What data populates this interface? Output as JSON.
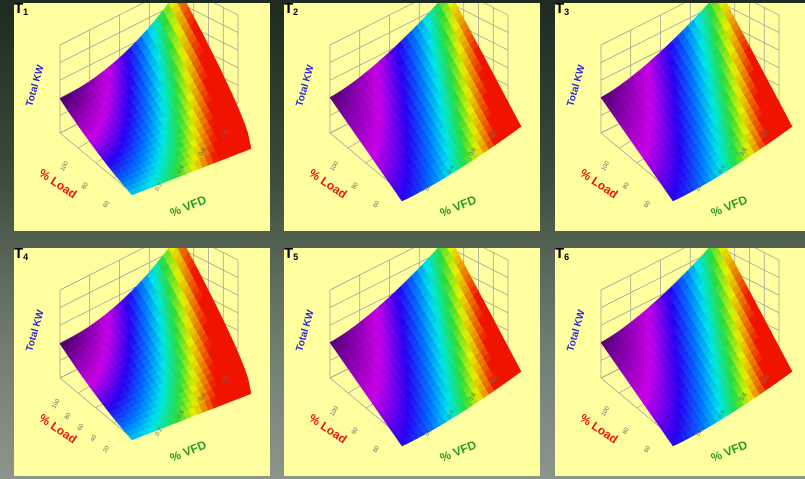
{
  "chart_data": [
    {
      "type": "surface",
      "title": "T",
      "sub": "1",
      "zlabel": "Total KW",
      "xlabel": "% Load",
      "ylabel": "% VFD",
      "load_ticks": [
        "100",
        "80",
        "60"
      ],
      "vfd_ticks": [
        "0.2",
        "0.4",
        "0.6",
        "0.8"
      ],
      "shape": "bowl"
    },
    {
      "type": "surface",
      "title": "T",
      "sub": "2",
      "zlabel": "Total KW",
      "xlabel": "% Load",
      "ylabel": "% VFD",
      "load_ticks": [
        "100",
        "80",
        "60"
      ],
      "vfd_ticks": [
        "0.2",
        "0.4",
        "0.6",
        "0.8"
      ],
      "shape": "ramp"
    },
    {
      "type": "surface",
      "title": "T",
      "sub": "3",
      "zlabel": "Total KW",
      "xlabel": "% Load",
      "ylabel": "% VFD",
      "load_ticks": [
        "100",
        "80",
        "60"
      ],
      "vfd_ticks": [
        "0.2",
        "0.4",
        "0.6",
        "0.8"
      ],
      "shape": "ramp"
    },
    {
      "type": "surface",
      "title": "T",
      "sub": "4",
      "zlabel": "Total KW",
      "xlabel": "% Load",
      "ylabel": "% VFD",
      "load_ticks": [
        "100",
        "80",
        "60",
        "40",
        "20"
      ],
      "vfd_ticks": [
        "0.2",
        "0.4",
        "0.6",
        "0.8"
      ],
      "shape": "bowl"
    },
    {
      "type": "surface",
      "title": "T",
      "sub": "5",
      "zlabel": "Total KW",
      "xlabel": "% Load",
      "ylabel": "% VFD",
      "load_ticks": [
        "100",
        "80",
        "60"
      ],
      "vfd_ticks": [
        "0.2",
        "0.4",
        "0.6",
        "0.8"
      ],
      "shape": "ramp"
    },
    {
      "type": "surface",
      "title": "T",
      "sub": "6",
      "zlabel": "Total KW",
      "xlabel": "% Load",
      "ylabel": "% VFD",
      "load_ticks": [
        "100",
        "80",
        "60"
      ],
      "vfd_ticks": [
        "0.2",
        "0.4",
        "0.6",
        "0.8"
      ],
      "shape": "ramp"
    }
  ]
}
